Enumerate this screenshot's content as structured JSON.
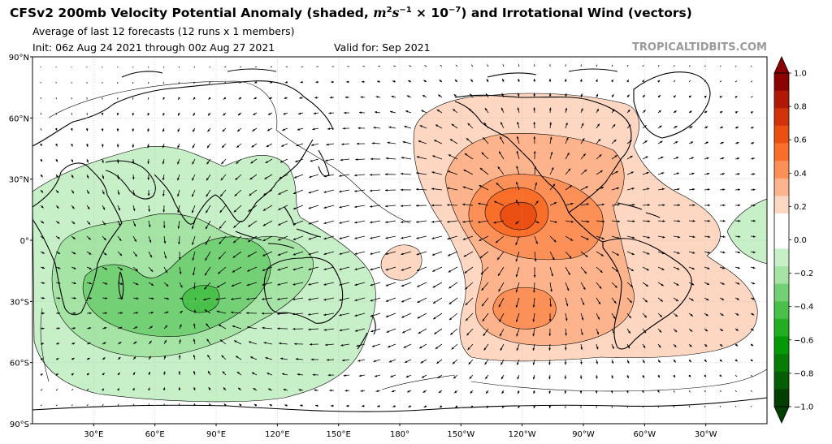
{
  "header": {
    "title_main": "CFSv2 200mb Velocity Potential Anomaly (shaded, ",
    "title_units_base": "m",
    "title_units_exp1": "2",
    "title_units_s": "s",
    "title_units_exp2": "−1",
    "title_units_scale": " × 10",
    "title_units_exp3": "−7",
    "title_tail": ") and Irrotational Wind (vectors)",
    "subtitle": "Average of last 12 forecasts (12 runs x 1 members)",
    "init": "Init: 06z Aug 24 2021 through 00z Aug 27 2021",
    "valid": "Valid for: Sep 2021",
    "brand": "TROPICALTIDBITS.COM"
  },
  "map": {
    "lat_labels": [
      "90°N",
      "60°N",
      "30°N",
      "0°",
      "30°S",
      "60°S",
      "90°S"
    ],
    "lon_labels": [
      "30°E",
      "60°E",
      "90°E",
      "120°E",
      "150°E",
      "180°",
      "150°W",
      "120°W",
      "90°W",
      "60°W",
      "30°W"
    ],
    "colors": {
      "land_outline": "#000000",
      "vector": "#000000",
      "grid": "#b0b0b0"
    }
  },
  "colorbar": {
    "tick_labels": [
      "1.0",
      "0.8",
      "0.6",
      "0.4",
      "0.2",
      "0.0",
      "−0.2",
      "−0.4",
      "−0.6",
      "−0.8",
      "−1.0"
    ],
    "levels_top_to_bottom": [
      "#8b0000",
      "#b01a05",
      "#d2330b",
      "#ec4f12",
      "#f96f2a",
      "#fc9056",
      "#fdb48c",
      "#fed7c3",
      "#ffffff",
      "#ffffff",
      "#c8f0c8",
      "#a5e4a5",
      "#74d074",
      "#49c049",
      "#22ae22",
      "#069906",
      "#057d05",
      "#045f04",
      "#033f03"
    ]
  }
}
